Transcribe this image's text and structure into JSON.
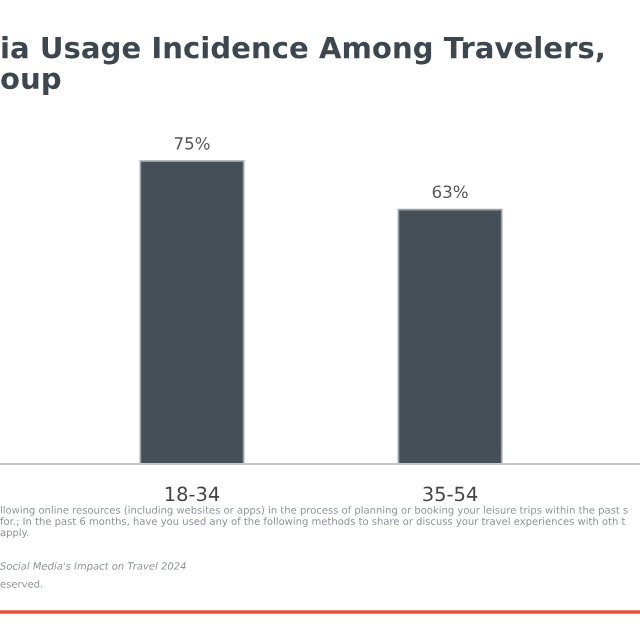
{
  "chart_data": {
    "type": "bar",
    "title": "ia Usage Incidence Among Travelers,\noup",
    "categories": [
      "18-34",
      "35-54"
    ],
    "values": [
      75,
      63
    ],
    "value_labels": [
      "75%",
      "63%"
    ],
    "color": "#454f58",
    "annotations": [
      "llowing online resources (including websites or apps) in the process of planning or booking your leisure trips within the past s for.; In the past 6 months, have you used any of the following methods to share or discuss your travel experiences with oth t apply.",
      "Social Media's Impact on Travel 2024",
      "eserved."
    ]
  }
}
